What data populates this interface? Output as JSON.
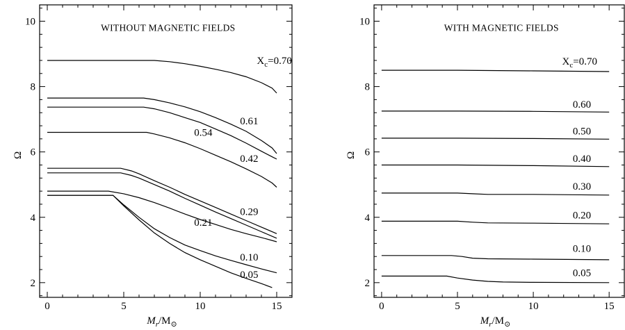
{
  "chart_data": [
    {
      "type": "line",
      "title": "WITHOUT MAGNETIC FIELDS",
      "xlabel_main": "M",
      "xlabel_sub": "r",
      "xlabel_rest": "/M",
      "xlabel_sym": "⊙",
      "ylabel": "Ω",
      "xlim": [
        -0.5,
        16.0
      ],
      "ylim": [
        1.55,
        10.5
      ],
      "xticks": [
        0,
        5,
        10,
        15
      ],
      "xtick_labels": [
        "0",
        "5",
        "10",
        "15"
      ],
      "yticks": [
        2,
        4,
        6,
        8,
        10
      ],
      "ytick_labels": [
        "2",
        "4",
        "6",
        "8",
        "10"
      ],
      "series": [
        {
          "name": "X",
          "label_text": "X",
          "label_sub": "c",
          "label_rest": "=0.70",
          "label_pos": [
            13.7,
            8.8
          ],
          "x": [
            0,
            7,
            8,
            9,
            10,
            11,
            12,
            13,
            14,
            14.7,
            15
          ],
          "y": [
            8.8,
            8.8,
            8.76,
            8.7,
            8.62,
            8.53,
            8.43,
            8.3,
            8.12,
            7.95,
            7.8
          ]
        },
        {
          "name": "0.61",
          "label_text": "0.61",
          "label_pos": [
            12.6,
            6.95
          ],
          "x": [
            0,
            6.3,
            7,
            8,
            9,
            10,
            11,
            12,
            13,
            14,
            14.7,
            15
          ],
          "y": [
            7.65,
            7.65,
            7.6,
            7.5,
            7.38,
            7.23,
            7.05,
            6.85,
            6.63,
            6.35,
            6.12,
            5.95
          ]
        },
        {
          "name": "0.54",
          "label_text": "0.54",
          "label_pos": [
            9.6,
            6.6
          ],
          "x": [
            0,
            6.3,
            7,
            8,
            9,
            10,
            11,
            12,
            13,
            14,
            14.7,
            15
          ],
          "y": [
            7.37,
            7.37,
            7.32,
            7.2,
            7.05,
            6.9,
            6.7,
            6.5,
            6.27,
            6.02,
            5.85,
            5.78
          ]
        },
        {
          "name": "0.42",
          "label_text": "0.42",
          "label_pos": [
            12.6,
            5.8
          ],
          "x": [
            0,
            6.5,
            7,
            8,
            9,
            10,
            11,
            12,
            13,
            14,
            14.7,
            15
          ],
          "y": [
            6.6,
            6.6,
            6.55,
            6.43,
            6.28,
            6.1,
            5.9,
            5.7,
            5.48,
            5.25,
            5.05,
            4.92
          ]
        },
        {
          "name": "0.29",
          "label_text": "0.29",
          "label_pos": [
            12.6,
            4.18
          ],
          "x": [
            0,
            4.8,
            5.5,
            6,
            7,
            8,
            9,
            10,
            11,
            12,
            13,
            14,
            15
          ],
          "y": [
            5.5,
            5.5,
            5.42,
            5.33,
            5.12,
            4.92,
            4.7,
            4.5,
            4.3,
            4.1,
            3.9,
            3.7,
            3.5
          ]
        },
        {
          "name": "0.29b",
          "x": [
            0,
            4.8,
            5.5,
            6,
            7,
            8,
            9,
            10,
            11,
            12,
            13,
            14,
            15
          ],
          "y": [
            5.36,
            5.36,
            5.28,
            5.2,
            5.0,
            4.8,
            4.58,
            4.37,
            4.16,
            3.96,
            3.76,
            3.56,
            3.36
          ]
        },
        {
          "name": "0.21",
          "label_text": "0.21",
          "label_pos": [
            9.6,
            3.85
          ],
          "x": [
            0,
            4.0,
            5.0,
            6,
            7,
            8,
            9,
            10,
            11,
            12,
            13,
            14,
            15
          ],
          "y": [
            4.8,
            4.8,
            4.72,
            4.6,
            4.45,
            4.28,
            4.1,
            3.93,
            3.78,
            3.63,
            3.5,
            3.38,
            3.25
          ]
        },
        {
          "name": "0.10",
          "label_text": "0.10",
          "label_pos": [
            12.6,
            2.78
          ],
          "x": [
            0,
            4.3,
            5,
            6,
            7,
            8,
            9,
            10,
            11,
            12,
            13,
            14,
            15
          ],
          "y": [
            4.67,
            4.67,
            4.38,
            4.0,
            3.65,
            3.38,
            3.15,
            2.98,
            2.82,
            2.68,
            2.55,
            2.42,
            2.3
          ]
        },
        {
          "name": "0.05",
          "label_text": "0.05",
          "label_pos": [
            12.6,
            2.25
          ],
          "x": [
            0,
            4.3,
            5,
            6,
            7,
            8,
            9,
            10,
            11,
            12,
            13,
            14,
            14.7
          ],
          "y": [
            4.67,
            4.67,
            4.35,
            3.92,
            3.52,
            3.2,
            2.92,
            2.7,
            2.5,
            2.3,
            2.13,
            1.97,
            1.85
          ]
        }
      ]
    },
    {
      "type": "line",
      "title": "WITH MAGNETIC FIELDS",
      "xlabel_main": "M",
      "xlabel_sub": "r",
      "xlabel_rest": "/M",
      "xlabel_sym": "⊙",
      "ylabel": "Ω",
      "xlim": [
        -0.5,
        16.0
      ],
      "ylim": [
        1.55,
        10.5
      ],
      "xticks": [
        0,
        5,
        10,
        15
      ],
      "xtick_labels": [
        "0",
        "5",
        "10",
        "15"
      ],
      "yticks": [
        2,
        4,
        6,
        8,
        10
      ],
      "ytick_labels": [
        "2",
        "4",
        "6",
        "8",
        "10"
      ],
      "series": [
        {
          "name": "X",
          "label_text": "X",
          "label_sub": "c",
          "label_rest": "=0.70",
          "label_pos": [
            11.9,
            8.78
          ],
          "x": [
            0,
            5,
            10,
            15
          ],
          "y": [
            8.5,
            8.5,
            8.48,
            8.46
          ]
        },
        {
          "name": "0.60",
          "label_text": "0.60",
          "label_pos": [
            12.6,
            7.46
          ],
          "x": [
            0,
            5,
            10,
            15
          ],
          "y": [
            7.25,
            7.25,
            7.24,
            7.22
          ]
        },
        {
          "name": "0.50",
          "label_text": "0.50",
          "label_pos": [
            12.6,
            6.64
          ],
          "x": [
            0,
            5,
            10,
            15
          ],
          "y": [
            6.42,
            6.42,
            6.41,
            6.39
          ]
        },
        {
          "name": "0.40",
          "label_text": "0.40",
          "label_pos": [
            12.6,
            5.8
          ],
          "x": [
            0,
            5,
            10,
            15
          ],
          "y": [
            5.6,
            5.6,
            5.58,
            5.55
          ]
        },
        {
          "name": "0.30",
          "label_text": "0.30",
          "label_pos": [
            12.6,
            4.95
          ],
          "x": [
            0,
            5,
            6,
            7,
            10,
            15
          ],
          "y": [
            4.74,
            4.74,
            4.72,
            4.7,
            4.7,
            4.68
          ]
        },
        {
          "name": "0.20",
          "label_text": "0.20",
          "label_pos": [
            12.6,
            4.07
          ],
          "x": [
            0,
            5,
            6,
            7,
            10,
            15
          ],
          "y": [
            3.88,
            3.88,
            3.85,
            3.83,
            3.82,
            3.8
          ]
        },
        {
          "name": "0.10",
          "label_text": "0.10",
          "label_pos": [
            12.6,
            3.05
          ],
          "x": [
            0,
            4.6,
            5.3,
            6,
            7,
            10,
            15
          ],
          "y": [
            2.83,
            2.83,
            2.8,
            2.75,
            2.73,
            2.72,
            2.7
          ]
        },
        {
          "name": "0.05",
          "label_text": "0.05",
          "label_pos": [
            12.6,
            2.3
          ],
          "x": [
            0,
            4.3,
            5,
            6,
            7,
            8,
            10,
            15
          ],
          "y": [
            2.2,
            2.2,
            2.14,
            2.08,
            2.04,
            2.02,
            2.01,
            2.0
          ]
        }
      ]
    }
  ]
}
